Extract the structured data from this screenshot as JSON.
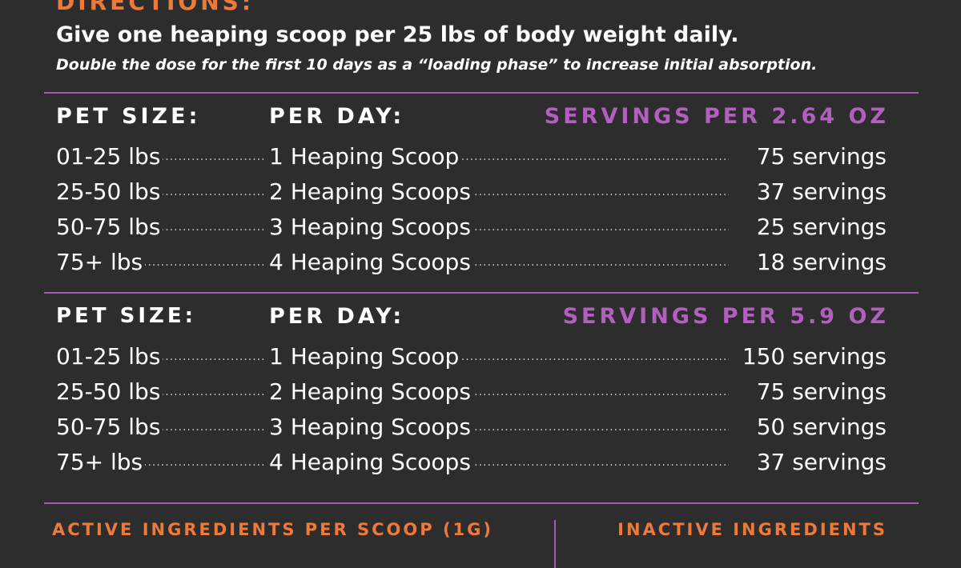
{
  "directions": {
    "heading": "DIRECTIONS:",
    "main": "Give one heaping scoop per 25 lbs of body weight daily.",
    "note": "Double the dose for the first 10 days as a “loading phase” to increase initial absorption."
  },
  "tables": [
    {
      "pet_size_label": "PET SIZE:",
      "per_day_label": "PER DAY:",
      "servings_label": "SERVINGS PER 2.64 OZ",
      "rows": [
        {
          "size": "01-25 lbs",
          "per_day": "1 Heaping Scoop",
          "servings": "75 servings"
        },
        {
          "size": "25-50 lbs",
          "per_day": "2 Heaping Scoops",
          "servings": "37 servings"
        },
        {
          "size": "50-75 lbs",
          "per_day": "3 Heaping Scoops",
          "servings": "25 servings"
        },
        {
          "size": "75+ lbs",
          "per_day": "4 Heaping Scoops",
          "servings": "18 servings"
        }
      ]
    },
    {
      "pet_size_label": "PET SIZE:",
      "per_day_label": "PER DAY:",
      "servings_label": "SERVINGS PER 5.9 OZ",
      "rows": [
        {
          "size": "01-25 lbs",
          "per_day": "1 Heaping Scoop",
          "servings": "150 servings"
        },
        {
          "size": "25-50 lbs",
          "per_day": "2 Heaping Scoops",
          "servings": "75 servings"
        },
        {
          "size": "50-75 lbs",
          "per_day": "3 Heaping Scoops",
          "servings": "50 servings"
        },
        {
          "size": "75+ lbs",
          "per_day": "4 Heaping Scoops",
          "servings": "37 servings"
        }
      ]
    }
  ],
  "ingredients": {
    "active_heading": "ACTIVE INGREDIENTS PER SCOOP (1G)",
    "inactive_heading": "INACTIVE INGREDIENTS"
  },
  "colors": {
    "background": "#2d2d2d",
    "orange": "#ee7a3a",
    "purple": "#b35fc0",
    "rule": "#a45ab3"
  }
}
